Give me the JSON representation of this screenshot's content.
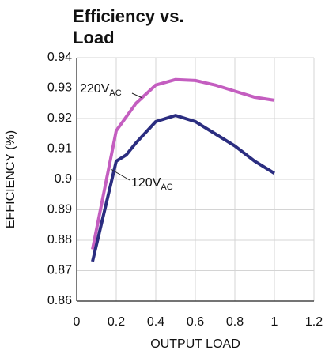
{
  "chart_data": {
    "type": "line",
    "title_lines": [
      "Efficiency vs.",
      "Load"
    ],
    "x_label": "OUTPUT LOAD",
    "y_label": "EFFICIENCY (%)",
    "xlim": [
      0,
      1.2
    ],
    "xticks": [
      0,
      0.2,
      0.4,
      0.6,
      0.8,
      1,
      1.2
    ],
    "ylim": [
      0.86,
      0.94
    ],
    "yticks": [
      0.86,
      0.87,
      0.88,
      0.89,
      0.9,
      0.91,
      0.92,
      0.93,
      0.94
    ],
    "grid": true,
    "series": [
      {
        "name": "220V",
        "name_sub": "AC",
        "color": "#c45ec0",
        "x": [
          0.08,
          0.2,
          0.3,
          0.4,
          0.5,
          0.6,
          0.7,
          0.8,
          0.9,
          1.0
        ],
        "values": [
          0.877,
          0.916,
          0.925,
          0.931,
          0.9328,
          0.9325,
          0.931,
          0.929,
          0.927,
          0.926
        ]
      },
      {
        "name": "120V",
        "name_sub": "AC",
        "color": "#2b2d80",
        "x": [
          0.08,
          0.2,
          0.25,
          0.3,
          0.4,
          0.5,
          0.6,
          0.7,
          0.8,
          0.9,
          1.0
        ],
        "values": [
          0.873,
          0.906,
          0.908,
          0.912,
          0.919,
          0.921,
          0.919,
          0.915,
          0.911,
          0.906,
          0.902
        ]
      }
    ]
  }
}
